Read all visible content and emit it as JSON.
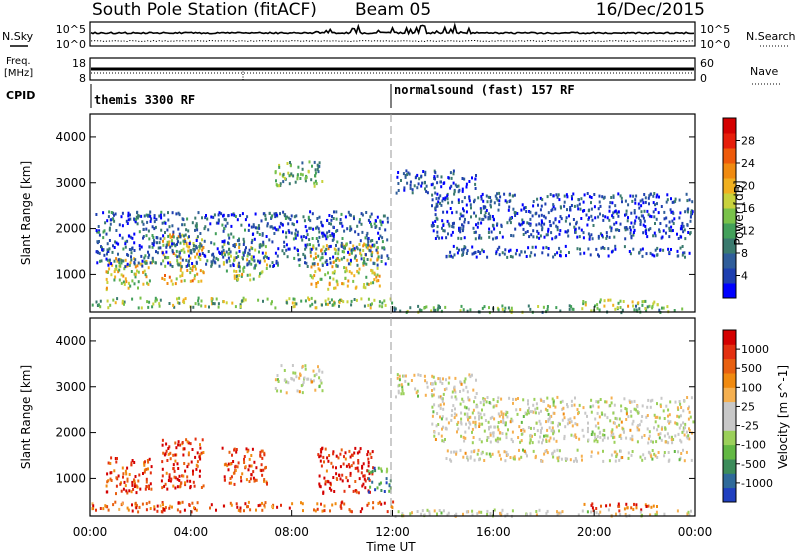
{
  "header": {
    "title": "South Pole Station (fitACF)",
    "beam": "Beam 05",
    "date": "16/Dec/2015"
  },
  "top_panels": {
    "nsky_label": "N.Sky",
    "nsearch_label": "N.Search",
    "noise_ticks": [
      "10^5",
      "10^0"
    ],
    "freq_label_1": "Freq.",
    "freq_label_2": "[MHz]",
    "freq_ticks": [
      "18",
      "8"
    ],
    "nave_label": "Nave",
    "nave_ticks": [
      "60",
      "0"
    ],
    "cpid_label": "CPID",
    "cpid_segments": [
      {
        "name": "themis 3300 RF",
        "start_hour": 0,
        "end_hour": 12
      },
      {
        "name": "normalsound (fast) 157 RF",
        "start_hour": 12,
        "end_hour": 24
      }
    ]
  },
  "chart_data": [
    {
      "type": "heatmap",
      "parameter": "Power",
      "ylabel": "Slant Range [km]",
      "yticks": [
        "1000",
        "2000",
        "3000",
        "4000"
      ],
      "ylim": [
        180,
        4500
      ],
      "xlim_hours": [
        0,
        24
      ],
      "colorbar_label": "Power [dB]",
      "colorbar_ticks": [
        "28",
        "24",
        "20",
        "16",
        "12",
        "8",
        "4"
      ],
      "colorscale": [
        "#0000ff",
        "#1e3fb0",
        "#2f5d9a",
        "#3a7a6e",
        "#43a05a",
        "#79c24a",
        "#c8d23c",
        "#f0b020",
        "#f08a10",
        "#ee5a0a",
        "#e61e0a",
        "#d40000"
      ],
      "regions": [
        {
          "t0": 0.0,
          "t1": 12.0,
          "r0": 300,
          "r1": 520,
          "v": 0.45
        },
        {
          "t0": 0.6,
          "t1": 2.5,
          "r0": 700,
          "r1": 1400,
          "v": 0.55
        },
        {
          "t0": 2.8,
          "t1": 4.5,
          "r0": 800,
          "r1": 1900,
          "v": 0.6
        },
        {
          "t0": 5.2,
          "t1": 7.0,
          "r0": 900,
          "r1": 1700,
          "v": 0.5
        },
        {
          "t0": 7.3,
          "t1": 9.2,
          "r0": 2900,
          "r1": 3500,
          "v": 0.4
        },
        {
          "t0": 8.7,
          "t1": 11.5,
          "r0": 700,
          "r1": 1700,
          "v": 0.55
        },
        {
          "t0": 0.2,
          "t1": 11.8,
          "r0": 1200,
          "r1": 2400,
          "v": 0.2
        },
        {
          "t0": 12.1,
          "t1": 15.3,
          "r0": 2800,
          "r1": 3300,
          "v": 0.15
        },
        {
          "t0": 14.0,
          "t1": 23.9,
          "r0": 1400,
          "r1": 1650,
          "v": 0.15
        },
        {
          "t0": 13.5,
          "t1": 23.9,
          "r0": 1800,
          "r1": 2800,
          "v": 0.15
        },
        {
          "t0": 19.5,
          "t1": 22.5,
          "r0": 320,
          "r1": 480,
          "v": 0.5
        },
        {
          "t0": 12.0,
          "t1": 23.9,
          "r0": 200,
          "r1": 350,
          "v": 0.4
        }
      ]
    },
    {
      "type": "heatmap",
      "parameter": "Velocity",
      "ylabel": "Slant Range [km]",
      "yticks": [
        "1000",
        "2000",
        "3000",
        "4000"
      ],
      "ylim": [
        180,
        4500
      ],
      "xlim_hours": [
        0,
        24
      ],
      "colorbar_label": "Velocity [m s^-1]",
      "colorbar_ticks": [
        "1000",
        "500",
        "100",
        "25",
        "-25",
        "-100",
        "-500",
        "-1000"
      ],
      "colorscale": [
        "#2040c0",
        "#2f6a9a",
        "#3c8c5a",
        "#62b843",
        "#9bd05a",
        "#c8c8c8",
        "#c8c8c8",
        "#f5b050",
        "#f08a10",
        "#e86010",
        "#e33010",
        "#d40000"
      ],
      "regions": [
        {
          "t0": 0.0,
          "t1": 12.0,
          "r0": 300,
          "r1": 520,
          "v": 0.8
        },
        {
          "t0": 0.6,
          "t1": 2.5,
          "r0": 700,
          "r1": 1500,
          "v": 0.85
        },
        {
          "t0": 2.8,
          "t1": 4.5,
          "r0": 800,
          "r1": 1900,
          "v": 0.88
        },
        {
          "t0": 5.2,
          "t1": 7.0,
          "r0": 900,
          "r1": 1700,
          "v": 0.85
        },
        {
          "t0": 7.3,
          "t1": 9.2,
          "r0": 2900,
          "r1": 3500,
          "v": 0.5
        },
        {
          "t0": 9.0,
          "t1": 11.2,
          "r0": 700,
          "r1": 1700,
          "v": 0.92
        },
        {
          "t0": 11.0,
          "t1": 11.9,
          "r0": 700,
          "r1": 1300,
          "v": 0.2
        },
        {
          "t0": 12.1,
          "t1": 15.3,
          "r0": 2800,
          "r1": 3300,
          "v": 0.5
        },
        {
          "t0": 14.0,
          "t1": 23.9,
          "r0": 1400,
          "r1": 1650,
          "v": 0.5
        },
        {
          "t0": 13.5,
          "t1": 23.9,
          "r0": 1800,
          "r1": 2800,
          "v": 0.5
        },
        {
          "t0": 19.5,
          "t1": 22.5,
          "r0": 320,
          "r1": 480,
          "v": 0.85
        },
        {
          "t0": 12.0,
          "t1": 23.9,
          "r0": 200,
          "r1": 350,
          "v": 0.5
        }
      ]
    }
  ],
  "x_axis": {
    "label": "Time UT",
    "ticks": [
      "00:00",
      "04:00",
      "08:00",
      "12:00",
      "16:00",
      "20:00",
      "00:00"
    ]
  }
}
